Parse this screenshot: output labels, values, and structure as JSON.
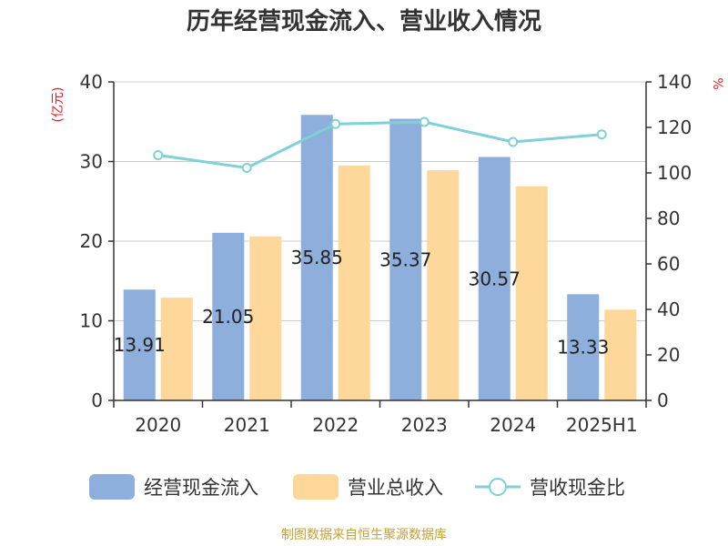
{
  "title": "历年经营现金流入、营业收入情况",
  "source": "制图数据来自恒生聚源数据库",
  "chart_data": {
    "type": "bar",
    "categories": [
      "2020",
      "2021",
      "2022",
      "2023",
      "2024",
      "2025H1"
    ],
    "series": [
      {
        "name": "经营现金流入",
        "type": "bar",
        "axis": "left",
        "color": "#8eaedb",
        "values": [
          13.91,
          21.05,
          35.85,
          35.37,
          30.57,
          13.33
        ],
        "labels": [
          "13.91",
          "21.05",
          "35.85",
          "35.37",
          "30.57",
          "13.33"
        ]
      },
      {
        "name": "营业总收入",
        "type": "bar",
        "axis": "left",
        "color": "#fdd89a",
        "values": [
          12.9,
          20.6,
          29.5,
          28.9,
          26.9,
          11.4
        ]
      },
      {
        "name": "营收现金比",
        "type": "line",
        "axis": "right",
        "color": "#7fd0d8",
        "values": [
          107.8,
          102.2,
          121.5,
          122.4,
          113.6,
          116.9
        ]
      }
    ],
    "y_left": {
      "label": "(亿元)",
      "ylim": [
        0,
        40
      ],
      "ticks": [
        0,
        10,
        20,
        30,
        40
      ]
    },
    "y_right": {
      "label": "%",
      "ylim": [
        0,
        140
      ],
      "ticks": [
        0,
        20,
        40,
        60,
        80,
        100,
        120,
        140
      ]
    },
    "grid": true,
    "legend": "bottom"
  }
}
